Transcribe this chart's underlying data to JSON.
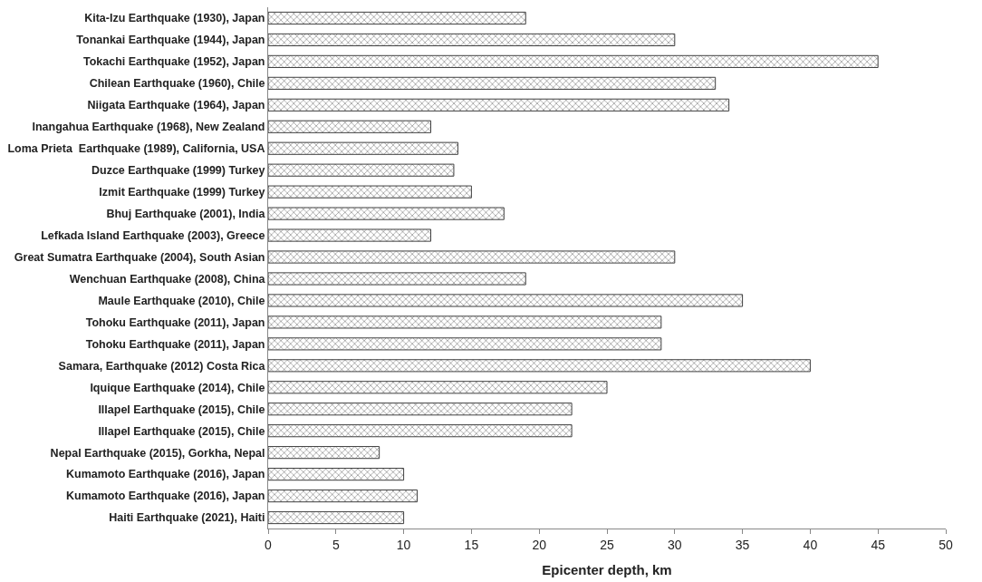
{
  "chart_data": {
    "type": "bar",
    "orientation": "horizontal",
    "xlabel": "Epicenter depth, km",
    "categories": [
      "Kita-Izu Earthquake (1930), Japan",
      "Tonankai Earthquake (1944), Japan",
      "Tokachi Earthquake (1952), Japan",
      "Chilean Earthquake (1960), Chile",
      "Niigata Earthquake (1964), Japan",
      "Inangahua Earthquake (1968), New Zealand",
      "Loma Prieta  Earthquake (1989), California, USA",
      "Duzce Earthquake (1999) Turkey",
      "Izmit Earthquake (1999) Turkey",
      "Bhuj Earthquake (2001), India",
      "Lefkada Island Earthquake (2003), Greece",
      "Great Sumatra Earthquake (2004), South Asian",
      "Wenchuan Earthquake (2008), China",
      "Maule Earthquake (2010), Chile",
      "Tohoku Earthquake (2011), Japan",
      "Tohoku Earthquake (2011), Japan",
      "Samara, Earthquake (2012) Costa Rica",
      "Iquique Earthquake (2014), Chile",
      "Illapel Earthquake (2015), Chile",
      "Illapel Earthquake (2015), Chile",
      "Nepal Earthquake (2015), Gorkha, Nepal",
      "Kumamoto Earthquake (2016), Japan",
      "Kumamoto Earthquake (2016), Japan",
      "Haiti Earthquake (2021), Haiti"
    ],
    "values": [
      19,
      30,
      45,
      33,
      34,
      12,
      14,
      13.7,
      15,
      17.4,
      12,
      30,
      19,
      35,
      29,
      29,
      40,
      25,
      22.4,
      22.4,
      8.2,
      10,
      11,
      10
    ],
    "color": "#404040",
    "xlim": [
      0,
      50
    ],
    "xticks": [
      0,
      5,
      10,
      15,
      20,
      25,
      30,
      35,
      40,
      45,
      50
    ]
  }
}
